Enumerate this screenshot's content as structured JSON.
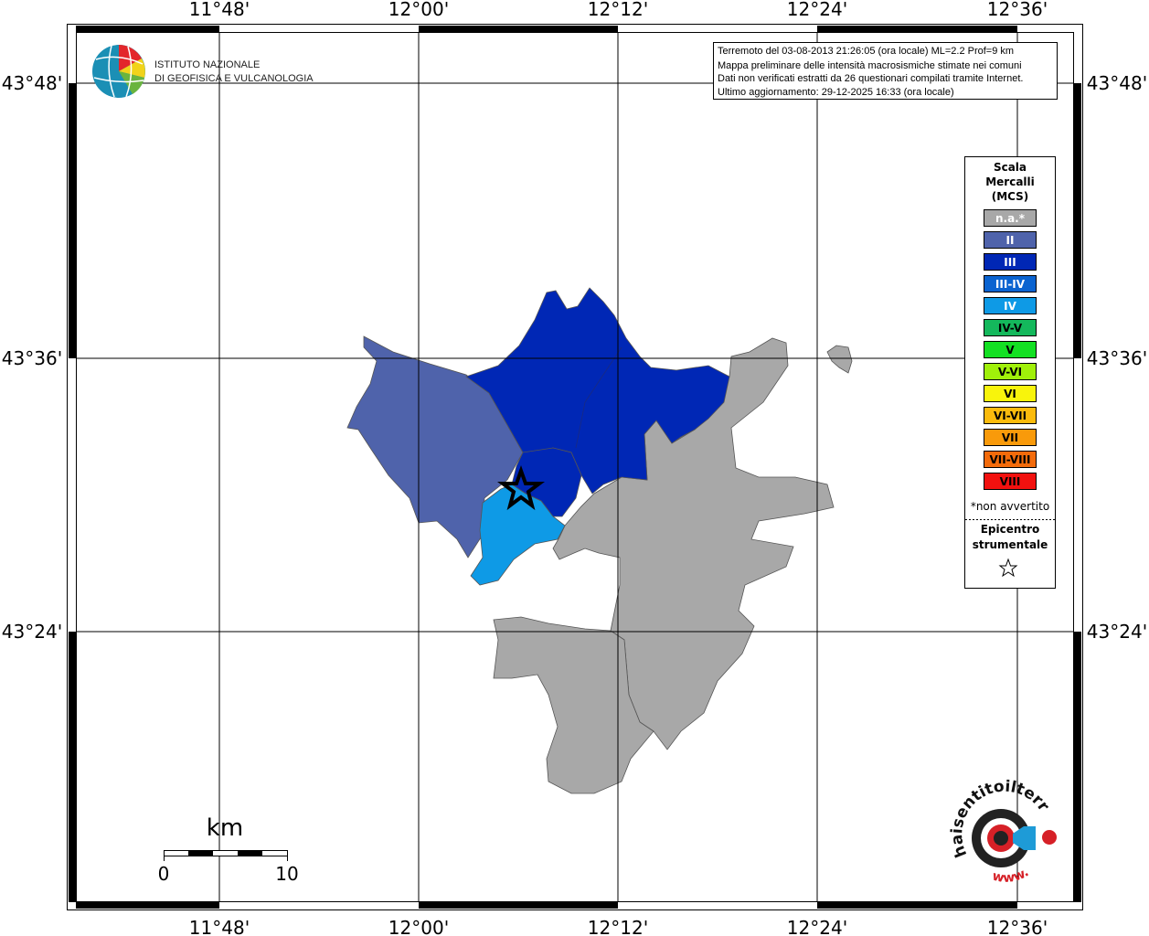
{
  "header": {
    "logo_lines": [
      "ISTITUTO NAZIONALE",
      "DI GEOFISICA E VULCANOLOGIA"
    ]
  },
  "info_box": {
    "lines": [
      "Terremoto del 03-08-2013 21:26:05 (ora locale) ML=2.2 Prof=9 km",
      "Mappa preliminare delle intensità macrosismiche stimate nei comuni",
      "Dati non verificati estratti da 26 questionari compilati tramite Internet.",
      "Ultimo aggiornamento: 29-12-2025 16:33 (ora locale)"
    ]
  },
  "map": {
    "lon_labels": [
      "11°48'",
      "12°00'",
      "12°12'",
      "12°24'",
      "12°36'"
    ],
    "lat_labels": [
      "43°48'",
      "43°36'",
      "43°24'"
    ]
  },
  "legend": {
    "title_lines": [
      "Scala",
      "Mercalli",
      "(MCS)"
    ],
    "items": [
      {
        "label": "n.a.*",
        "color": "#a8a8a8",
        "text_color": "#ffffff"
      },
      {
        "label": "II",
        "color": "#4f63ab",
        "text_color": "#ffffff"
      },
      {
        "label": "III",
        "color": "#0027b5",
        "text_color": "#ffffff"
      },
      {
        "label": "III-IV",
        "color": "#0a63d0",
        "text_color": "#ffffff"
      },
      {
        "label": "IV",
        "color": "#0e9ae6",
        "text_color": "#ffffff"
      },
      {
        "label": "IV-V",
        "color": "#14b85c",
        "text_color": "#000000"
      },
      {
        "label": "V",
        "color": "#13e023",
        "text_color": "#000000"
      },
      {
        "label": "V-VI",
        "color": "#a0f00a",
        "text_color": "#000000"
      },
      {
        "label": "VI",
        "color": "#f8f40c",
        "text_color": "#000000"
      },
      {
        "label": "VI-VII",
        "color": "#fbbb0d",
        "text_color": "#000000"
      },
      {
        "label": "VII",
        "color": "#f99a0a",
        "text_color": "#000000"
      },
      {
        "label": "VII-VIII",
        "color": "#f36b0b",
        "text_color": "#000000"
      },
      {
        "label": "VIII",
        "color": "#f2110f",
        "text_color": "#000000"
      }
    ],
    "note": "*non avvertito",
    "epicenter_lines": [
      "Epicentro",
      "strumentale"
    ]
  },
  "scale_bar": {
    "unit": "km",
    "labels": [
      "0",
      "10"
    ]
  },
  "footer_logo": {
    "text": "haisentitoilterremoto.it",
    "prefix": "www."
  }
}
